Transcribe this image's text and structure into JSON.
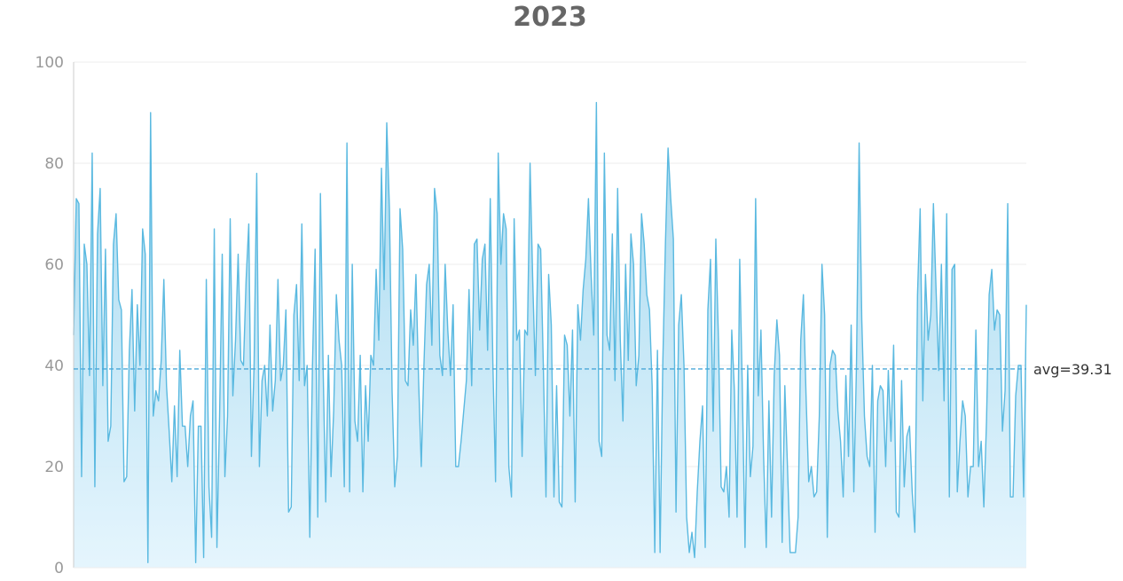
{
  "chart_data": {
    "type": "area",
    "title": "2023",
    "xlabel": "",
    "ylabel": "",
    "ylim": [
      0,
      100
    ],
    "yticks": [
      0,
      20,
      40,
      60,
      80,
      100
    ],
    "grid": true,
    "legend": "none",
    "colors": {
      "line": "#5ab9e0",
      "fill_top": "#9fd6ee",
      "fill_bottom": "#e2f4fd",
      "avg": "#4aa8d8",
      "axis": "#cccccc",
      "grid": "#eeeeee"
    },
    "average": {
      "value": 39.31,
      "label": "avg=39.31"
    },
    "series": [
      {
        "values": [
          46,
          73,
          72,
          18,
          64,
          60,
          38,
          82,
          16,
          66,
          75,
          36,
          63,
          25,
          28,
          64,
          70,
          53,
          51,
          17,
          18,
          43,
          55,
          31,
          52,
          40,
          67,
          62,
          1,
          90,
          30,
          35,
          33,
          41,
          57,
          36,
          27,
          17,
          32,
          18,
          43,
          28,
          28,
          20,
          30,
          33,
          1,
          28,
          28,
          2,
          57,
          16,
          6,
          67,
          4,
          30,
          62,
          18,
          30,
          69,
          34,
          45,
          62,
          41,
          40,
          57,
          68,
          22,
          40,
          78,
          20,
          37,
          40,
          30,
          48,
          31,
          37,
          57,
          37,
          40,
          51,
          11,
          12,
          50,
          56,
          37,
          68,
          36,
          40,
          6,
          40,
          63,
          10,
          74,
          40,
          13,
          42,
          18,
          31,
          54,
          45,
          40,
          16,
          84,
          15,
          60,
          29,
          25,
          42,
          15,
          36,
          25,
          42,
          40,
          59,
          45,
          79,
          55,
          88,
          71,
          35,
          16,
          22,
          71,
          63,
          37,
          36,
          51,
          44,
          58,
          37,
          20,
          40,
          56,
          60,
          44,
          75,
          70,
          42,
          38,
          60,
          47,
          38,
          52,
          20,
          20,
          25,
          31,
          37,
          55,
          36,
          64,
          65,
          47,
          61,
          64,
          43,
          73,
          40,
          17,
          82,
          60,
          70,
          67,
          20,
          14,
          69,
          45,
          47,
          22,
          47,
          46,
          80,
          57,
          38,
          64,
          63,
          40,
          14,
          58,
          48,
          14,
          36,
          13,
          12,
          46,
          44,
          30,
          47,
          13,
          52,
          45,
          55,
          61,
          73,
          58,
          46,
          92,
          25,
          22,
          82,
          46,
          43,
          66,
          37,
          75,
          45,
          29,
          60,
          41,
          66,
          60,
          36,
          42,
          70,
          64,
          54,
          51,
          36,
          3,
          43,
          3,
          40,
          64,
          83,
          73,
          65,
          11,
          48,
          54,
          40,
          10,
          3,
          7,
          2,
          15,
          25,
          32,
          4,
          51,
          61,
          27,
          65,
          45,
          16,
          15,
          20,
          10,
          47,
          35,
          10,
          61,
          35,
          4,
          40,
          18,
          24,
          73,
          34,
          47,
          22,
          4,
          33,
          10,
          38,
          49,
          42,
          5,
          36,
          20,
          3,
          3,
          3,
          10,
          45,
          54,
          34,
          17,
          20,
          14,
          15,
          30,
          60,
          50,
          6,
          40,
          43,
          42,
          31,
          25,
          14,
          38,
          22,
          48,
          15,
          40,
          84,
          49,
          30,
          22,
          20,
          40,
          7,
          33,
          36,
          35,
          20,
          39,
          25,
          44,
          11,
          10,
          37,
          16,
          26,
          28,
          15,
          7,
          54,
          71,
          33,
          58,
          45,
          50,
          72,
          55,
          39,
          60,
          33,
          70,
          14,
          59,
          60,
          15,
          25,
          33,
          30,
          14,
          20,
          20,
          47,
          20,
          25,
          12,
          29,
          54,
          59,
          47,
          51,
          50,
          27,
          35,
          72,
          14,
          14,
          34,
          40,
          40,
          14,
          52
        ]
      }
    ]
  }
}
